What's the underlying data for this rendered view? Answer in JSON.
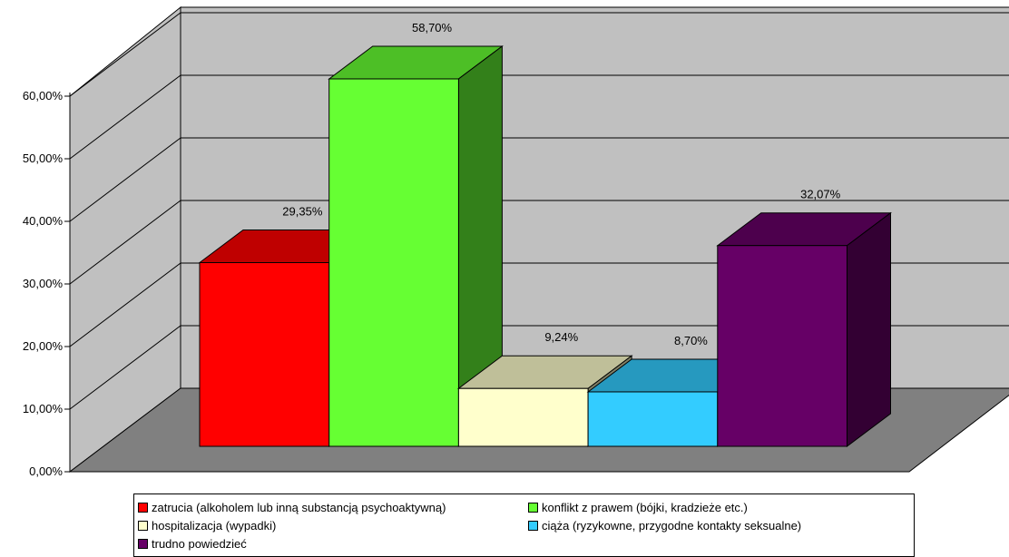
{
  "chart_data": {
    "type": "bar",
    "categories": [
      "zatrucia (alkoholem lub inną substancją psychoaktywną)",
      "konflikt z prawem (bójki, kradzieże etc.)",
      "hospitalizacja (wypadki)",
      "ciąża (ryzykowne, przygodne kontakty seksualne)",
      "trudno powiedzieć"
    ],
    "values": [
      29.35,
      58.7,
      9.24,
      8.7,
      32.07
    ],
    "data_labels": [
      "29,35%",
      "58,70%",
      "9,24%",
      "8,70%",
      "32,07%"
    ],
    "colors": [
      "#ff0000",
      "#66ff33",
      "#ffffcc",
      "#33ccff",
      "#660066"
    ],
    "yticks": [
      "0,00%",
      "10,00%",
      "20,00%",
      "30,00%",
      "40,00%",
      "50,00%",
      "60,00%"
    ],
    "ylim": [
      0,
      60
    ],
    "grid": true,
    "legend_position": "bottom",
    "title": "",
    "xlabel": "",
    "ylabel": ""
  },
  "legend": {
    "items": [
      "zatrucia (alkoholem lub inną substancją psychoaktywną)",
      "konflikt z prawem (bójki, kradzieże etc.)",
      "hospitalizacja (wypadki)",
      "ciąża (ryzykowne, przygodne kontakty seksualne)",
      "trudno powiedzieć"
    ]
  }
}
